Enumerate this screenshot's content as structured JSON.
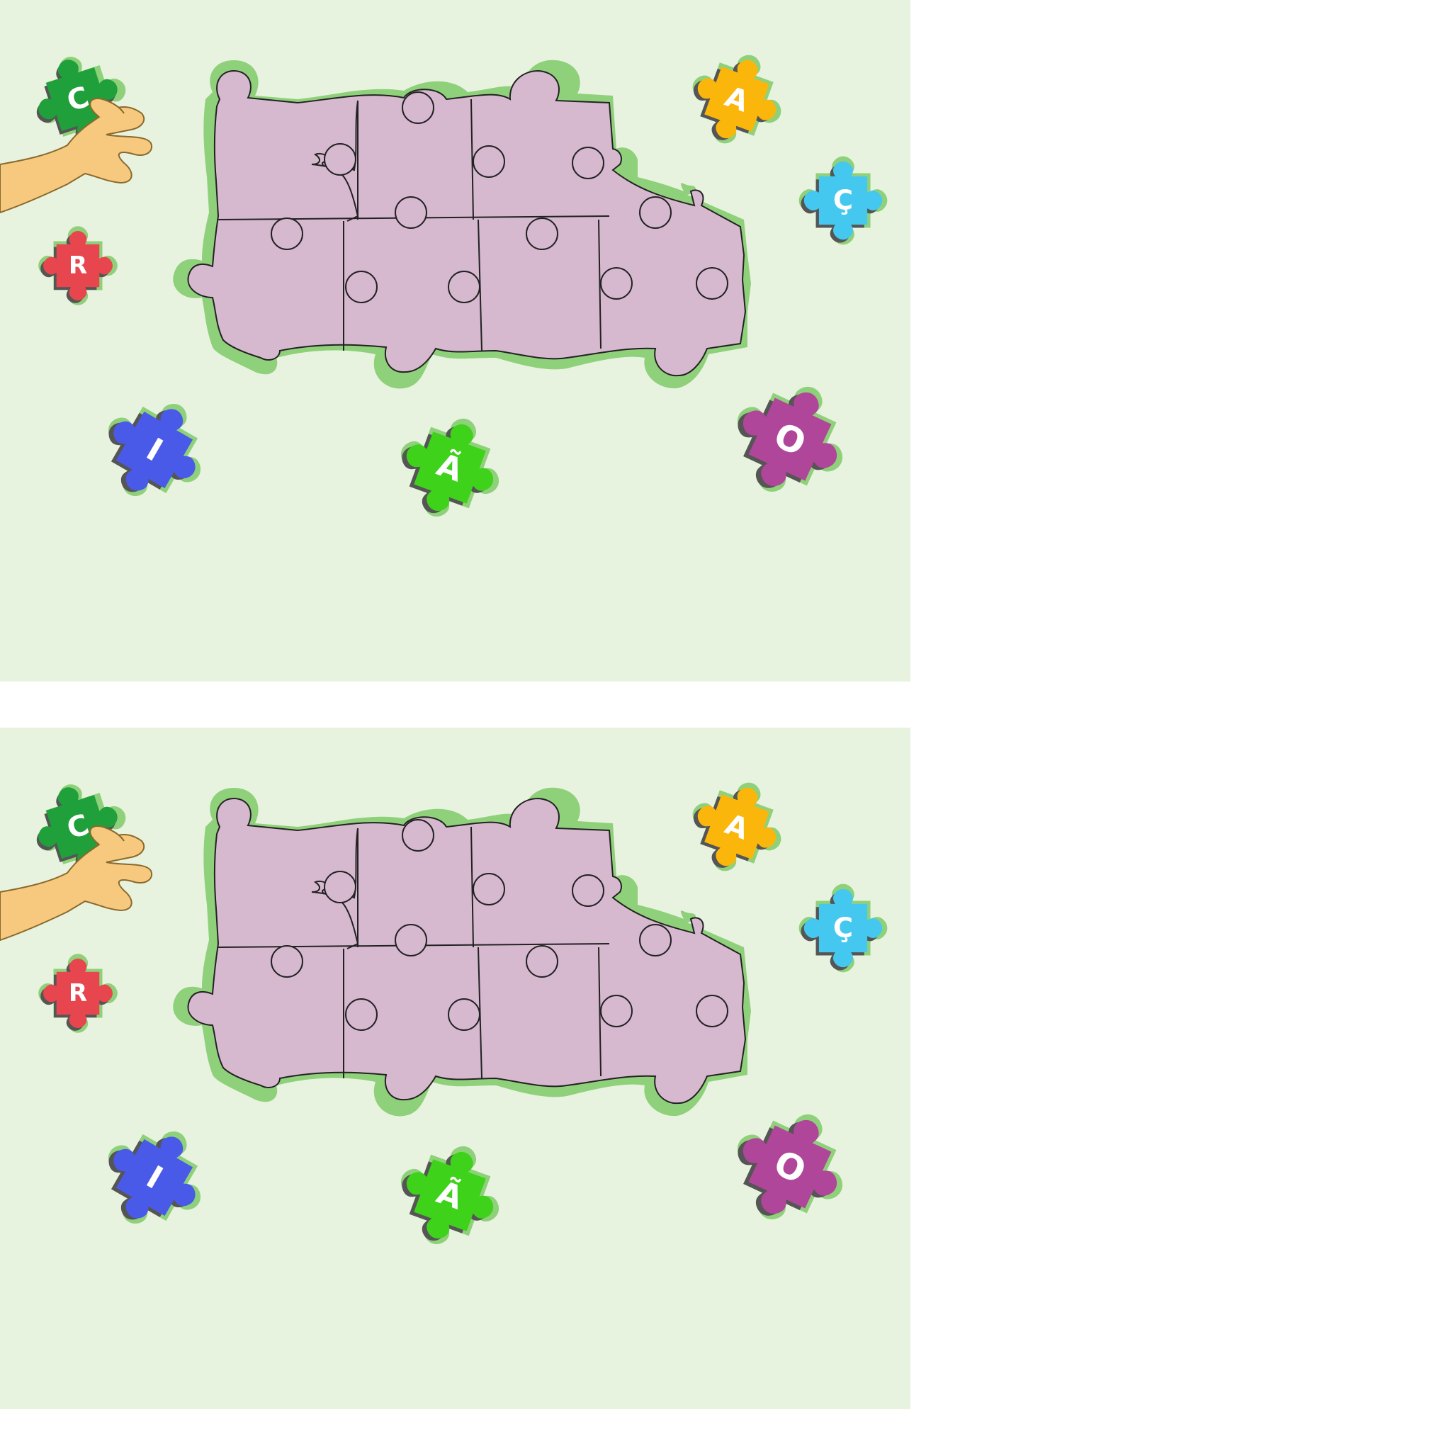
{
  "colors": {
    "background": "#e7f3df",
    "board_fill": "#d6b8cf",
    "board_rim": "#8fd17a",
    "piece_green_dark": "#1fa03a",
    "piece_red": "#e8464f",
    "piece_blue": "#4a5ae8",
    "piece_green": "#3ed21b",
    "piece_orange": "#fbb60b",
    "piece_cyan": "#45c8f0",
    "piece_purple": "#b0469a"
  },
  "loose_pieces": [
    {
      "id": "held",
      "letter": "C",
      "color": "#1fa03a"
    },
    {
      "id": "red",
      "letter": "R",
      "color": "#e8464f"
    },
    {
      "id": "blue",
      "letter": "I",
      "color": "#4a5ae8"
    },
    {
      "id": "green",
      "letter": "Ã",
      "color": "#3ed21b"
    },
    {
      "id": "orange",
      "letter": "A",
      "color": "#fbb60b"
    },
    {
      "id": "cyan",
      "letter": "Ç",
      "color": "#45c8f0"
    },
    {
      "id": "purple",
      "letter": "O",
      "color": "#b0469a"
    }
  ],
  "board": {
    "slots": 7
  },
  "icons": {
    "hand": "hand-icon"
  }
}
